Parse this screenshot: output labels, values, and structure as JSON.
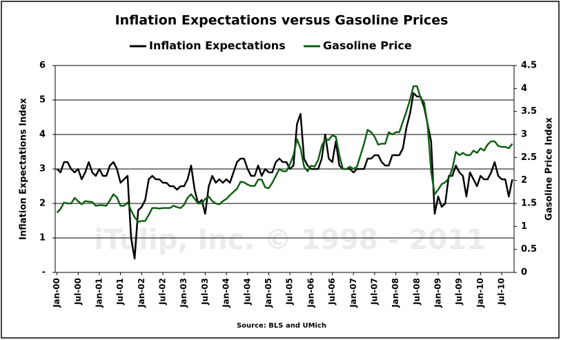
{
  "chart_data": {
    "type": "line",
    "title": "Inflation Expectations versus Gasoline Prices",
    "ylabel": "Inflation Expectations Index",
    "y2label": "Gasoline Price Index",
    "source": "Source: BLS and UMich",
    "watermark": "iTulip, Inc. © 1998 - 2011",
    "categories": [
      "Jan-00",
      null,
      null,
      null,
      null,
      null,
      "Jul-00",
      null,
      null,
      null,
      null,
      null,
      "Jan-01",
      null,
      null,
      null,
      null,
      null,
      "Jul-01",
      null,
      null,
      null,
      null,
      null,
      "Jan-02",
      null,
      null,
      null,
      null,
      null,
      "Jul-02",
      null,
      null,
      null,
      null,
      null,
      "Jan-03",
      null,
      null,
      null,
      null,
      null,
      "Jul-03",
      null,
      null,
      null,
      null,
      null,
      "Jan-04",
      null,
      null,
      null,
      null,
      null,
      "Jul-04",
      null,
      null,
      null,
      null,
      null,
      "Jan-05",
      null,
      null,
      null,
      null,
      null,
      "Jul-05",
      null,
      null,
      null,
      null,
      null,
      "Jan-06",
      null,
      null,
      null,
      null,
      null,
      "Jul-06",
      null,
      null,
      null,
      null,
      null,
      "Jan-07",
      null,
      null,
      null,
      null,
      null,
      "Jul-07",
      null,
      null,
      null,
      null,
      null,
      "Jan-08",
      null,
      null,
      null,
      null,
      null,
      "Jul-08",
      null,
      null,
      null,
      null,
      null,
      "Jan-09",
      null,
      null,
      null,
      null,
      null,
      "Jul-09",
      null,
      null,
      null,
      null,
      null,
      "Jan-10",
      null,
      null,
      null,
      null,
      null,
      "Jul-10",
      null,
      null,
      null
    ],
    "series": [
      {
        "name": "Inflation Expectations",
        "color": "#000000",
        "axis": "y",
        "values": [
          3.0,
          2.9,
          3.2,
          3.2,
          3.0,
          2.9,
          3.0,
          2.7,
          2.9,
          3.2,
          2.9,
          2.8,
          3.0,
          2.8,
          2.8,
          3.1,
          3.2,
          3.0,
          2.6,
          2.7,
          2.8,
          1.0,
          0.4,
          1.8,
          1.9,
          2.1,
          2.7,
          2.8,
          2.7,
          2.7,
          2.6,
          2.6,
          2.5,
          2.5,
          2.4,
          2.5,
          2.5,
          2.7,
          3.1,
          2.4,
          2.0,
          2.1,
          1.7,
          2.5,
          2.8,
          2.6,
          2.7,
          2.6,
          2.7,
          2.6,
          2.9,
          3.2,
          3.3,
          3.3,
          3.0,
          2.8,
          2.8,
          3.1,
          2.8,
          3.0,
          2.9,
          2.9,
          3.2,
          3.3,
          3.2,
          3.2,
          3.0,
          3.1,
          4.3,
          4.6,
          3.3,
          3.1,
          3.0,
          3.0,
          3.0,
          3.3,
          4.0,
          3.3,
          3.2,
          3.8,
          3.1,
          3.0,
          3.0,
          3.0,
          2.9,
          3.0,
          3.0,
          3.0,
          3.3,
          3.3,
          3.4,
          3.4,
          3.2,
          3.1,
          3.1,
          3.4,
          3.4,
          3.4,
          3.6,
          4.2,
          4.6,
          5.2,
          5.1,
          5.1,
          4.8,
          4.3,
          3.8,
          1.7,
          2.2,
          1.9,
          2.0,
          2.8,
          2.8,
          3.1,
          2.9,
          2.8,
          2.2,
          2.9,
          2.7,
          2.5,
          2.8,
          2.7,
          2.7,
          2.9,
          3.2,
          2.8,
          2.7,
          2.7,
          2.2,
          2.7
        ]
      },
      {
        "name": "Gasoline Price",
        "color": "#0f5f12",
        "axis": "y2",
        "values": [
          1.3,
          1.38,
          1.52,
          1.5,
          1.5,
          1.62,
          1.55,
          1.48,
          1.55,
          1.54,
          1.53,
          1.45,
          1.46,
          1.46,
          1.45,
          1.57,
          1.7,
          1.63,
          1.45,
          1.45,
          1.52,
          1.35,
          1.2,
          1.1,
          1.12,
          1.12,
          1.25,
          1.4,
          1.4,
          1.39,
          1.4,
          1.4,
          1.4,
          1.45,
          1.42,
          1.4,
          1.47,
          1.62,
          1.7,
          1.6,
          1.5,
          1.5,
          1.6,
          1.65,
          1.55,
          1.5,
          1.48,
          1.55,
          1.6,
          1.68,
          1.75,
          1.82,
          1.97,
          1.96,
          1.91,
          1.88,
          1.88,
          2.02,
          2.02,
          1.85,
          1.83,
          1.95,
          2.1,
          2.25,
          2.2,
          2.2,
          2.35,
          2.55,
          2.9,
          2.7,
          2.3,
          2.2,
          2.32,
          2.3,
          2.45,
          2.75,
          2.9,
          2.88,
          2.98,
          2.95,
          2.55,
          2.25,
          2.25,
          2.3,
          2.25,
          2.3,
          2.55,
          2.8,
          3.1,
          3.05,
          2.95,
          2.78,
          2.8,
          2.8,
          3.05,
          3.0,
          3.05,
          3.05,
          3.28,
          3.5,
          3.75,
          4.05,
          4.05,
          3.8,
          3.7,
          3.2,
          2.2,
          1.7,
          1.8,
          1.92,
          1.96,
          2.05,
          2.25,
          2.62,
          2.55,
          2.6,
          2.55,
          2.55,
          2.65,
          2.6,
          2.7,
          2.65,
          2.78,
          2.85,
          2.85,
          2.75,
          2.73,
          2.73,
          2.7,
          2.8
        ]
      }
    ],
    "ylim": [
      0,
      6
    ],
    "yticks": [
      {
        "value": 0,
        "label": "-"
      },
      1,
      2,
      3,
      4,
      5,
      6
    ],
    "y2lim": [
      0,
      4.5
    ],
    "y2ticks": [
      0,
      0.5,
      1,
      1.5,
      2,
      2.5,
      3,
      3.5,
      4,
      4.5
    ],
    "grid": true,
    "legend": "top"
  }
}
